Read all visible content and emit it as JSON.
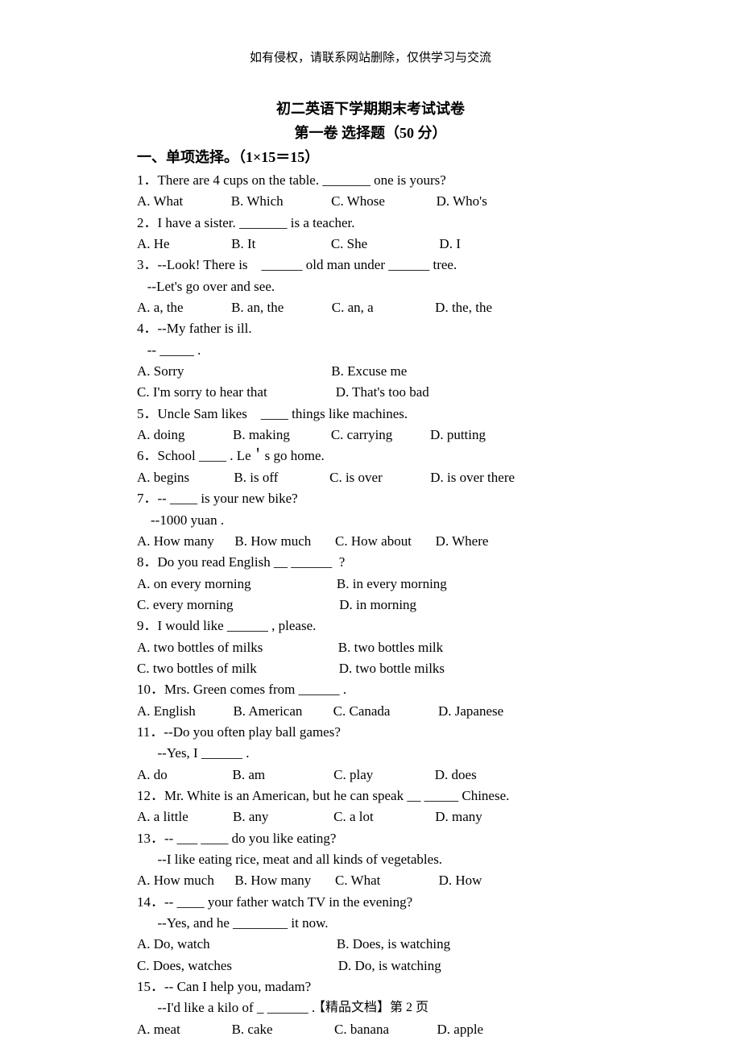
{
  "copyright": "如有侵权，请联系网站删除，仅供学习与交流",
  "title1": "初二英语下学期期末考试试卷",
  "title2": "第一卷   选择题（50 分）",
  "section1": "一、单项选择。（1×15＝15）",
  "lines": [
    "1．There are 4 cups on the table. _______ one is yours?",
    "A. What              B. Which              C. Whose               D. Who's",
    "2．I have a sister. _______ is a teacher.",
    "A. He                  B. It                      C. She                     D. I",
    "3．--Look! There is    ______ old man under ______ tree.",
    "   --Let's go over and see.",
    "A. a, the              B. an, the              C. an, a                  D. the, the",
    "4．--My father is ill.",
    "   -- _____ .",
    "A. Sorry                                           B. Excuse me",
    "C. I'm sorry to hear that                    D. That's too bad",
    "5．Uncle Sam likes    ____ things like machines.",
    "A. doing              B. making            C. carrying           D. putting",
    "6．School ____ . Le＇s go home.",
    "A. begins             B. is off               C. is over              D. is over there",
    "7．-- ____ is your new bike?",
    "    --1000 yuan .",
    "A. How many      B. How much       C. How about       D. Where",
    "8．Do you read English __ ______  ?",
    "A. on every morning                         B. in every morning",
    "C. every morning                               D. in morning",
    "9．I would like ______ , please.",
    "A. two bottles of milks                      B. two bottles milk",
    "C. two bottles of milk                        D. two bottle milks",
    "10．Mrs. Green comes from ______ .",
    "A. English           B. American         C. Canada              D. Japanese",
    "11．--Do you often play ball games?",
    "      --Yes, I ______ .",
    "A. do                   B. am                    C. play                  D. does",
    "12．Mr. White is an American, but he can speak __ _____ Chinese.",
    "A. a little             B. any                   C. a lot                  D. many",
    "13．-- ___ ____ do you like eating?",
    "      --I like eating rice, meat and all kinds of vegetables.",
    "A. How much      B. How many       C. What                 D. How",
    "14．-- ____ your father watch TV in the evening?",
    "      --Yes, and he ________ it now.",
    "A. Do, watch                                     B. Does, is watching",
    "C. Does, watches                               D. Do, is watching",
    "15．-- Can I help you, madam?",
    "      --I'd like a kilo of _ ______ .",
    "A. meat               B. cake                  C. banana              D. apple"
  ],
  "footer": "【精品文档】第  2  页"
}
